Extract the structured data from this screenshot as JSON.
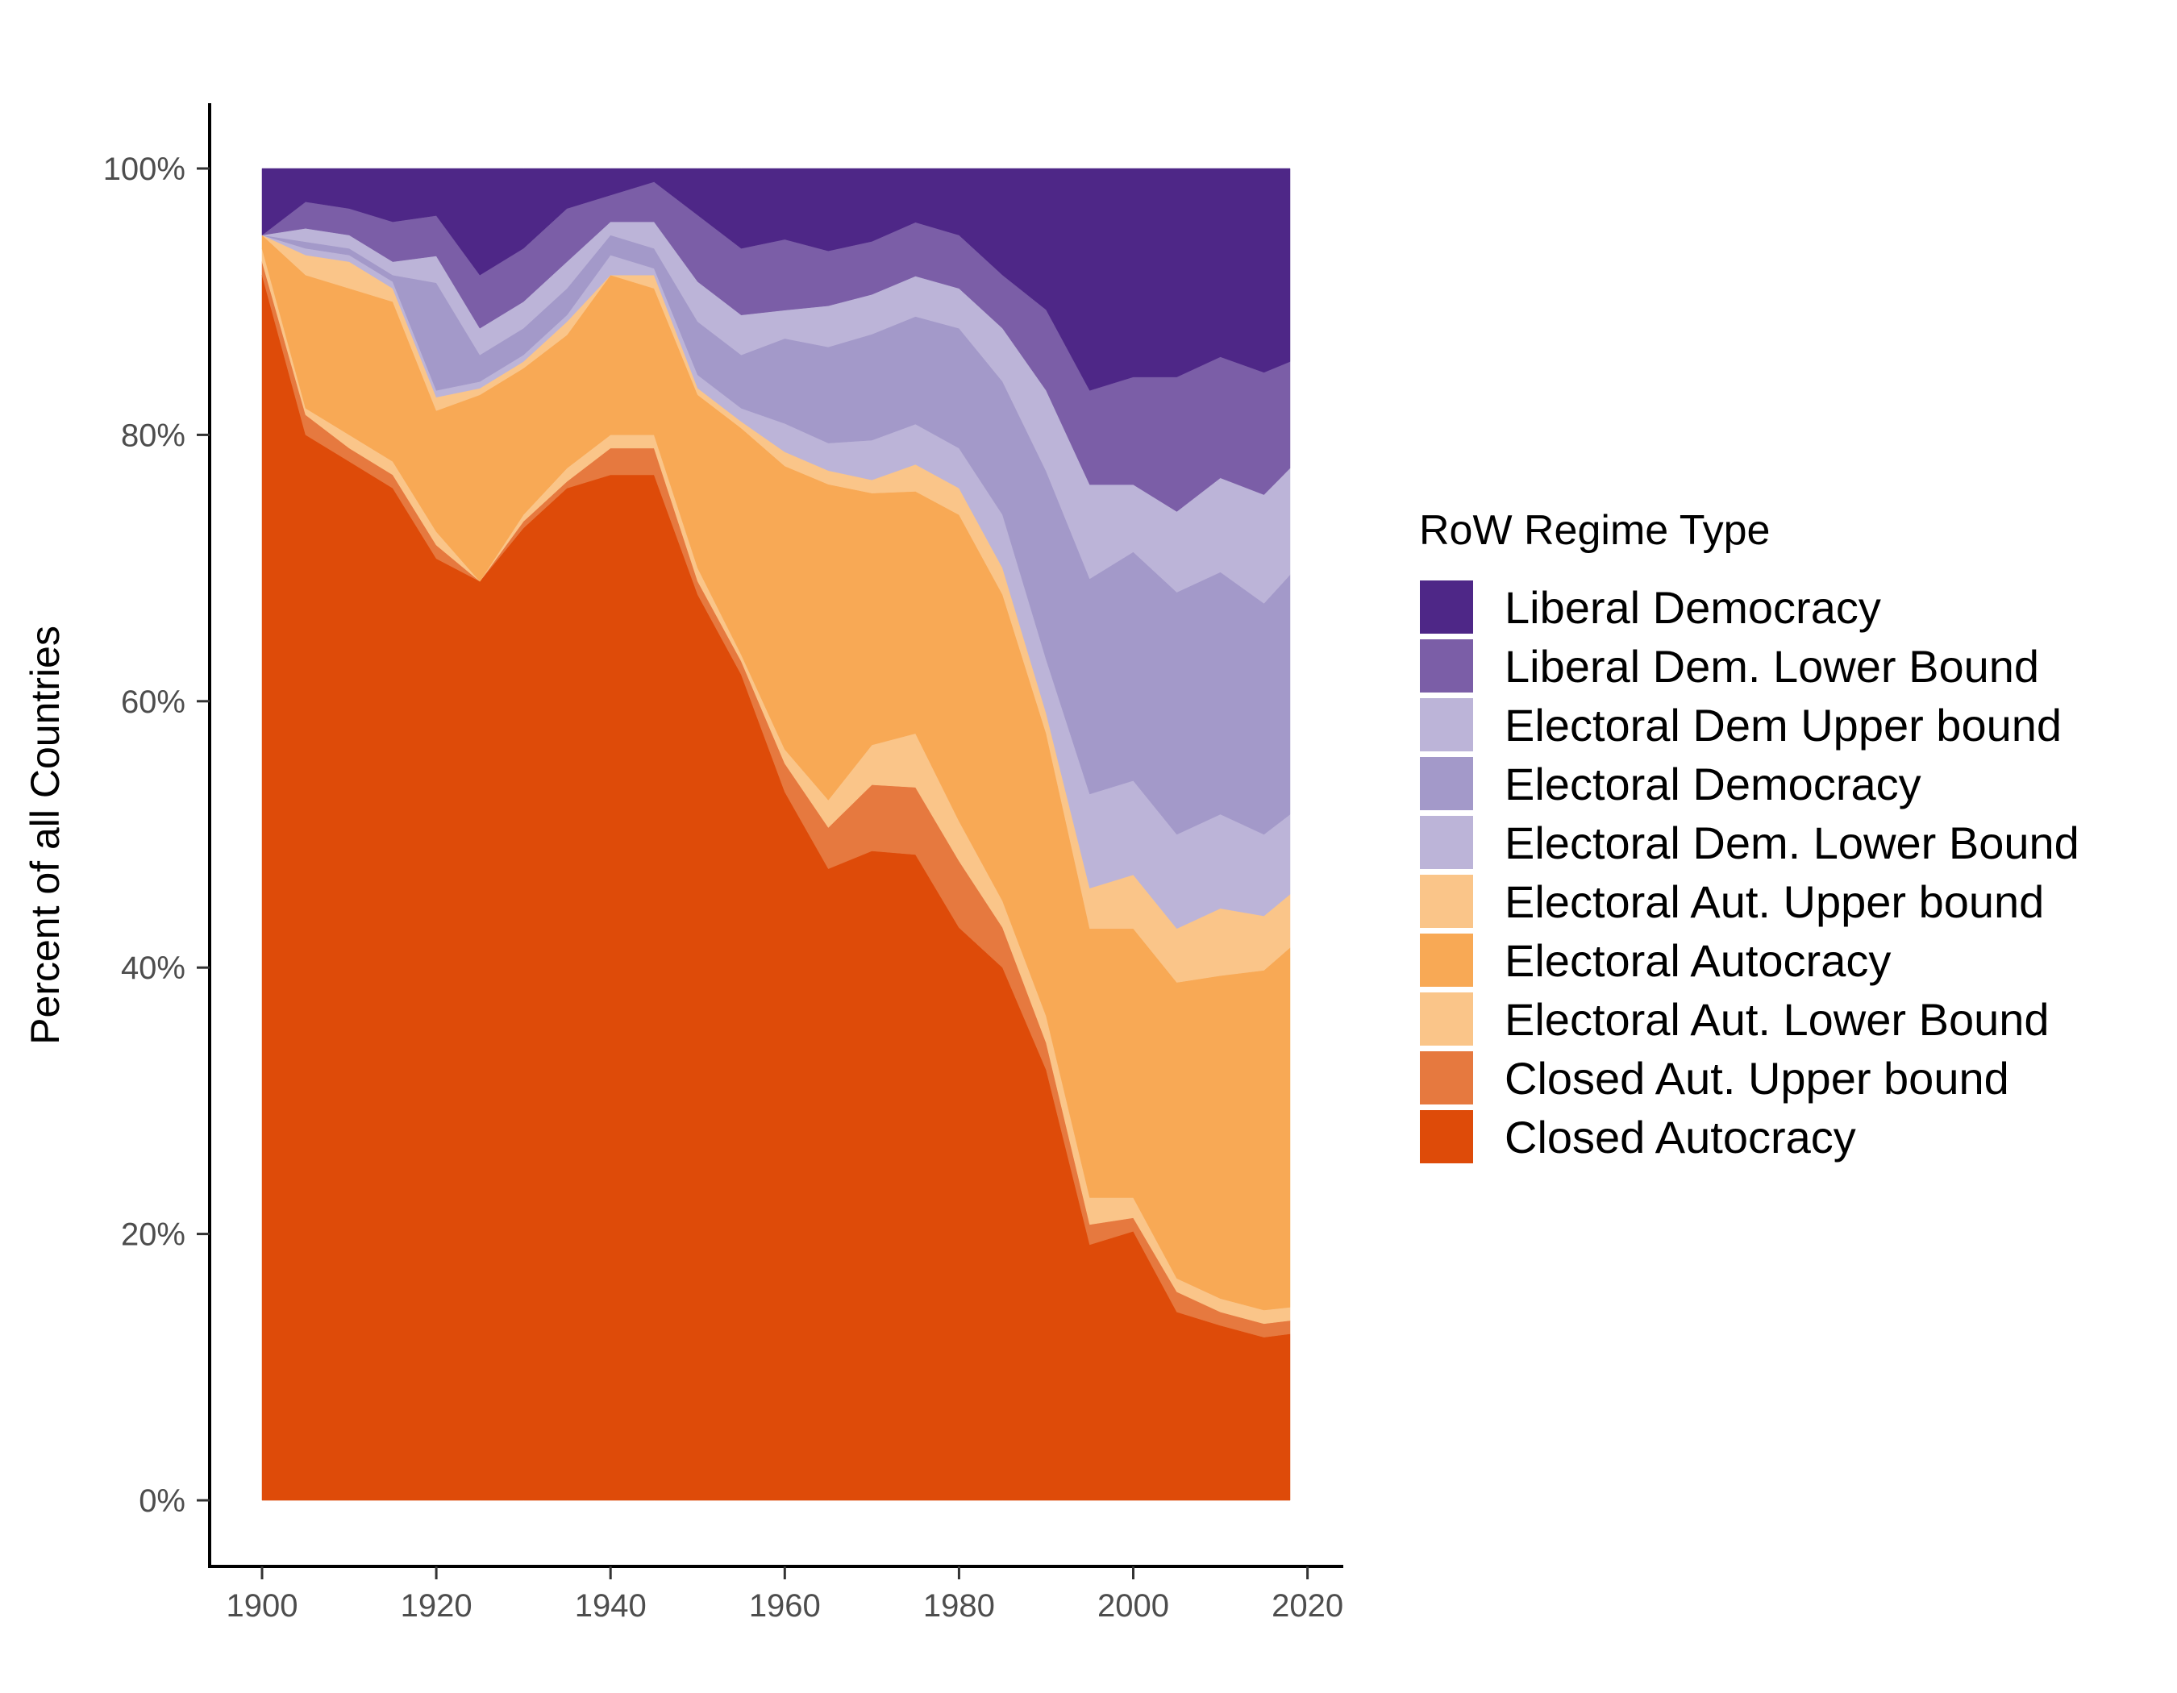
{
  "chart_data": {
    "type": "area",
    "stacked": true,
    "normalized": true,
    "title": "",
    "xlabel": "",
    "ylabel": "Percent of all Countries",
    "xlim": [
      1900,
      2018
    ],
    "ylim": [
      0,
      100
    ],
    "x_ticks": [
      1900,
      1920,
      1940,
      1960,
      1980,
      2000,
      2020
    ],
    "y_ticks": [
      0,
      20,
      40,
      60,
      80,
      100
    ],
    "y_tick_labels": [
      "0%",
      "20%",
      "40%",
      "60%",
      "80%",
      "100%"
    ],
    "x_tick_labels": [
      "1900",
      "1920",
      "1940",
      "1960",
      "1980",
      "2000",
      "2020"
    ],
    "grid": false,
    "legend": {
      "title": "RoW Regime Type",
      "position": "right"
    },
    "x": [
      1900,
      1905,
      1910,
      1915,
      1920,
      1925,
      1930,
      1935,
      1940,
      1945,
      1950,
      1955,
      1960,
      1965,
      1970,
      1975,
      1980,
      1985,
      1990,
      1995,
      2000,
      2005,
      2010,
      2015,
      2018
    ],
    "series": [
      {
        "name": "Closed Autocracy",
        "color": "#de4b09",
        "values": [
          92,
          80,
          78,
          76,
          70,
          69,
          73,
          76,
          77,
          77,
          68,
          62,
          50,
          46,
          49,
          48,
          43,
          40,
          32,
          19,
          20,
          14,
          13,
          12,
          12.5
        ]
      },
      {
        "name": "Closed Aut. Upper bound",
        "color": "#e6793f",
        "values": [
          1,
          1.5,
          1,
          1,
          1,
          0,
          0.5,
          0.5,
          2,
          2,
          1,
          1,
          2,
          3,
          5,
          5,
          5,
          3,
          2,
          1.5,
          1,
          1.5,
          1,
          1,
          1
        ]
      },
      {
        "name": "Electoral Aut. Lower Bound",
        "color": "#fac589",
        "values": [
          1,
          0.5,
          1,
          1,
          1,
          0,
          0.5,
          1,
          1,
          1,
          1,
          0.5,
          1,
          2,
          3,
          4,
          3,
          2,
          2,
          2,
          1.5,
          1,
          1,
          1,
          1
        ]
      },
      {
        "name": "Electoral Autocracy",
        "color": "#f8a955",
        "values": [
          1,
          10,
          11,
          12,
          9,
          14,
          11,
          10,
          12,
          11,
          13,
          17,
          20,
          23,
          19,
          18,
          23,
          23,
          21,
          20,
          20,
          22,
          24,
          25,
          27
        ]
      },
      {
        "name": "Electoral Aut. Upper bound",
        "color": "#fac589",
        "values": [
          0,
          1.5,
          2,
          1,
          1,
          0.5,
          0.5,
          1,
          0,
          1,
          0.5,
          0.5,
          1,
          1,
          1,
          2,
          2,
          2,
          1.5,
          3,
          4,
          4,
          5,
          4,
          4
        ]
      },
      {
        "name": "Electoral Dem. Lower Bound",
        "color": "#bcb4d8",
        "values": [
          0,
          0.5,
          0.5,
          0.5,
          0.5,
          0.5,
          0.5,
          0.5,
          1.5,
          0.5,
          1,
          1,
          2,
          2,
          3,
          3,
          3,
          4,
          4,
          7,
          7,
          7,
          7,
          6,
          6
        ]
      },
      {
        "name": "Electoral Democracy",
        "color": "#a399c9",
        "values": [
          0,
          0.5,
          0.5,
          0.5,
          8,
          2,
          2,
          2,
          1.5,
          1.5,
          4,
          4,
          6,
          7,
          8,
          8,
          9,
          10,
          14,
          16,
          17,
          18,
          18,
          17,
          18
        ]
      },
      {
        "name": "Electoral Dem Upper bound",
        "color": "#bcb4d8",
        "values": [
          0,
          1,
          1,
          1,
          2,
          2,
          2,
          2,
          1,
          2,
          3,
          3,
          2,
          3,
          3,
          3,
          3,
          4,
          6,
          7,
          5,
          6,
          7,
          8,
          8
        ]
      },
      {
        "name": "Liberal Dem. Lower Bound",
        "color": "#7b5ea7",
        "values": [
          0,
          2,
          2,
          3,
          3,
          4,
          4,
          4,
          2,
          3,
          5,
          5,
          5,
          4,
          4,
          4,
          4,
          4,
          6,
          7,
          8,
          10,
          9,
          9,
          8
        ]
      },
      {
        "name": "Liberal Democracy",
        "color": "#4e2787",
        "values": [
          5,
          2.5,
          3,
          4,
          3.5,
          8,
          6,
          3,
          2,
          1,
          3.5,
          6,
          5,
          6,
          5.5,
          4,
          5,
          8,
          10.5,
          16.5,
          15.5,
          15.5,
          14,
          15,
          14.5
        ]
      }
    ]
  }
}
